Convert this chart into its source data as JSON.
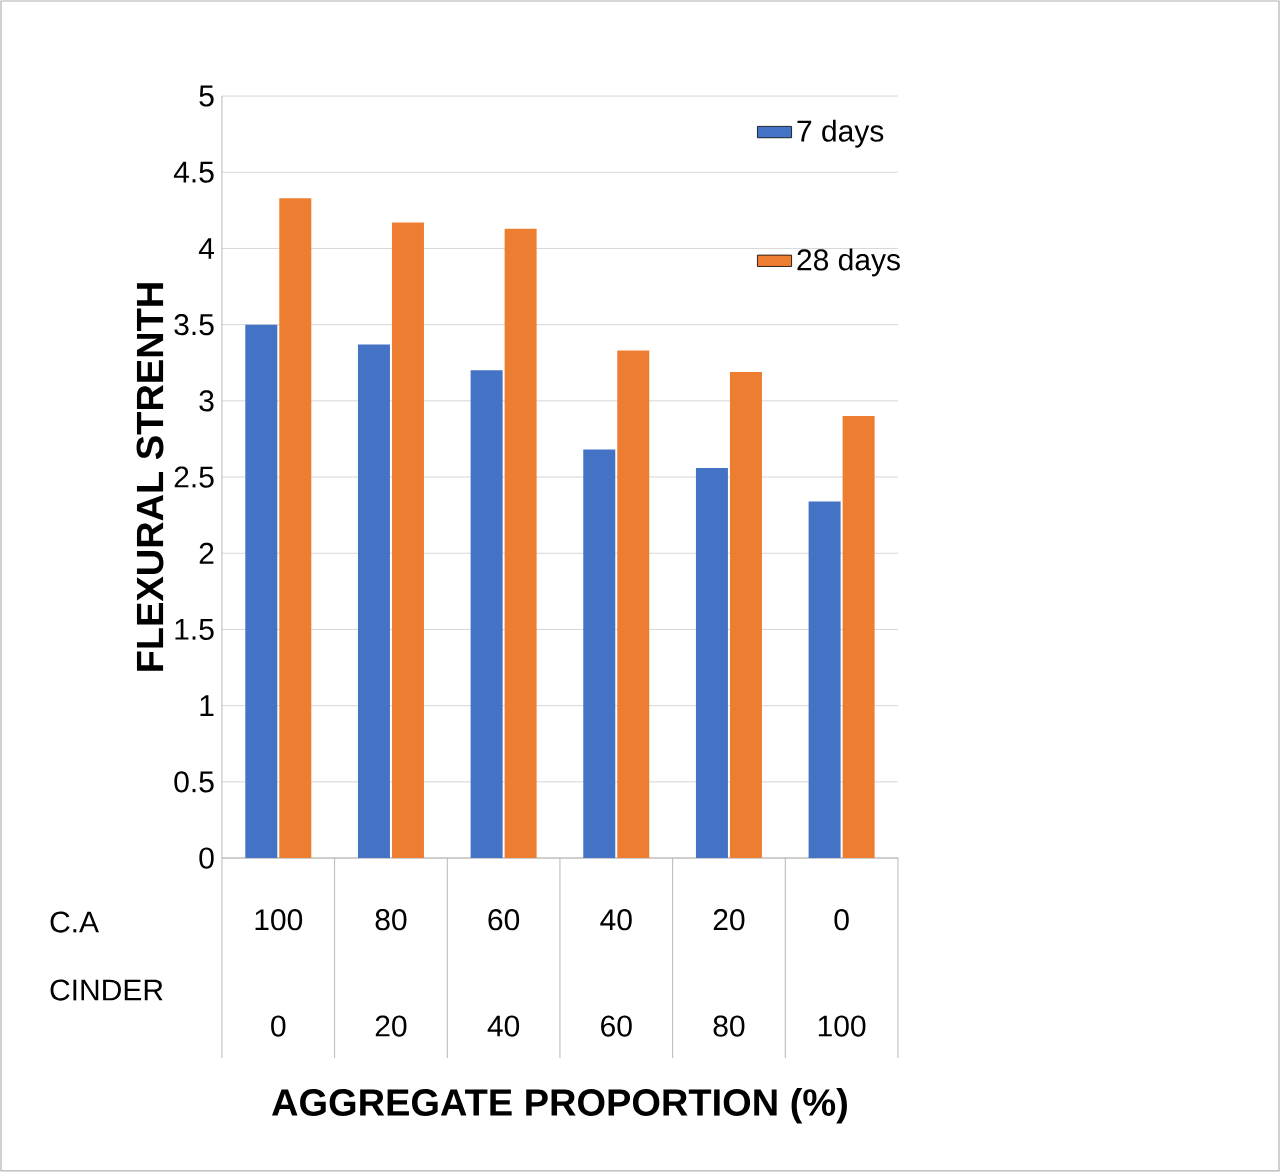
{
  "chart_data": {
    "type": "bar",
    "ylabel": "FLEXURAL STRENTH",
    "xlabel": "AGGREGATE PROPORTION (%)",
    "categories": [
      "100",
      "80",
      "60",
      "40",
      "20",
      "0"
    ],
    "series": [
      {
        "name": "7 days",
        "color": "#4472c4",
        "values": [
          3.5,
          3.37,
          3.2,
          2.68,
          2.56,
          2.34
        ]
      },
      {
        "name": "28 days",
        "color": "#ed7d31",
        "values": [
          4.33,
          4.17,
          4.13,
          3.33,
          3.19,
          2.9
        ]
      }
    ],
    "ylim": [
      0,
      5
    ],
    "yticks": [
      0,
      0.5,
      1,
      1.5,
      2,
      2.5,
      3,
      3.5,
      4,
      4.5,
      5
    ],
    "grid": "y",
    "legend": "top right",
    "annotations": [
      "C.A",
      "CINDER",
      "0",
      "20",
      "40",
      "60",
      "80",
      "100"
    ]
  }
}
